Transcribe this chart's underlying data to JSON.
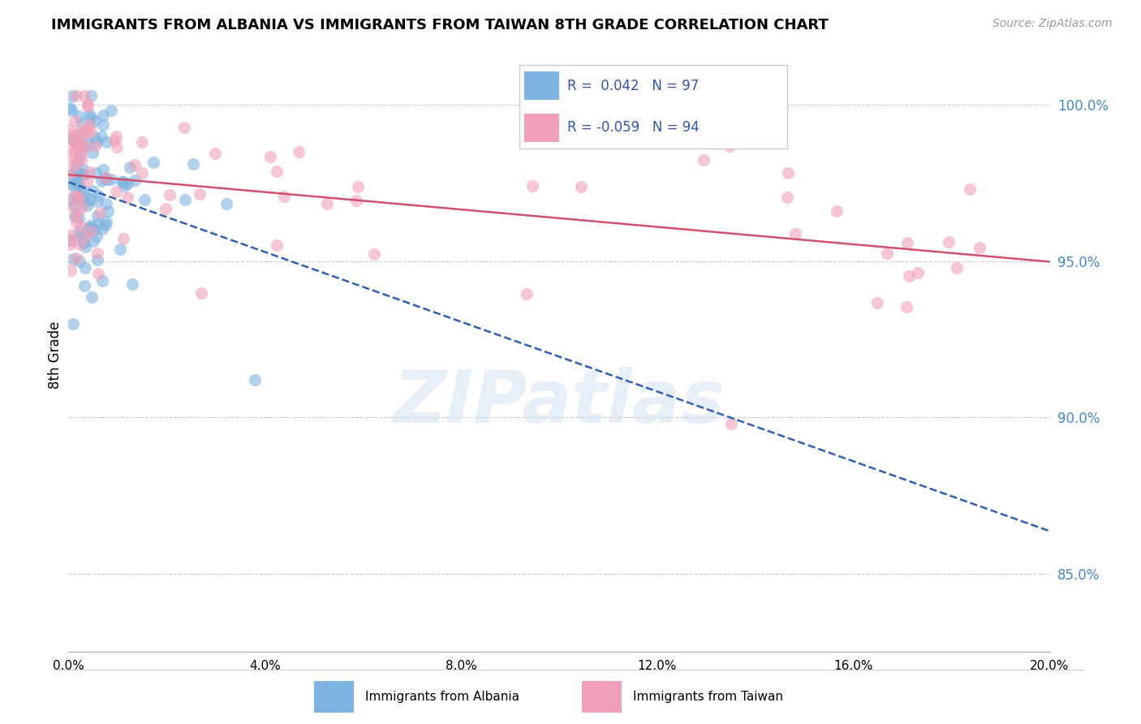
{
  "title": "IMMIGRANTS FROM ALBANIA VS IMMIGRANTS FROM TAIWAN 8TH GRADE CORRELATION CHART",
  "source": "Source: ZipAtlas.com",
  "ylabel": "8th Grade",
  "xlim": [
    0.0,
    0.2
  ],
  "ylim": [
    0.825,
    1.015
  ],
  "yticks": [
    0.85,
    0.9,
    0.95,
    1.0
  ],
  "ytick_labels": [
    "85.0%",
    "90.0%",
    "95.0%",
    "100.0%"
  ],
  "xticks": [
    0.0,
    0.04,
    0.08,
    0.12,
    0.16,
    0.2
  ],
  "xtick_labels": [
    "0.0%",
    "4.0%",
    "8.0%",
    "12.0%",
    "16.0%",
    "20.0%"
  ],
  "albania_color": "#7eb3e0",
  "taiwan_color": "#f0a0b8",
  "trendline_albania_color": "#3060b0",
  "trendline_taiwan_color": "#d05070",
  "legend_r_albania": "R =  0.042",
  "legend_n_albania": "N = 97",
  "legend_r_taiwan": "R = -0.059",
  "legend_n_taiwan": "N = 94",
  "legend_label_albania": "Immigrants from Albania",
  "legend_label_taiwan": "Immigrants from Taiwan",
  "watermark": "ZIPatlas",
  "background_color": "#ffffff",
  "grid_color": "#cccccc",
  "tick_color": "#4488cc",
  "title_fontsize": 13,
  "source_fontsize": 10,
  "marker_size": 120,
  "marker_alpha": 0.6
}
